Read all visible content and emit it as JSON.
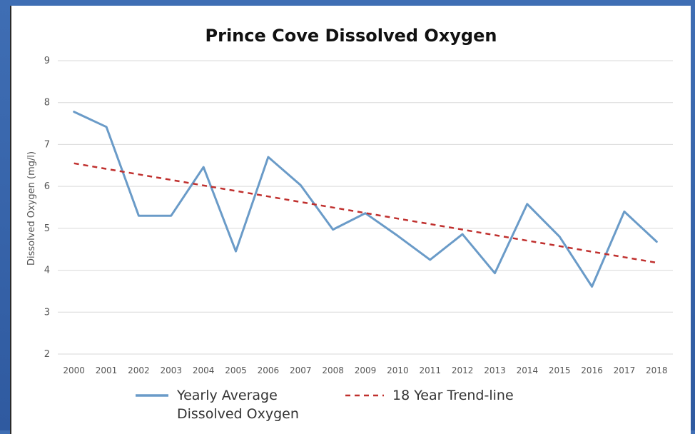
{
  "chart_data": {
    "type": "line",
    "title": "Prince Cove Dissolved Oxygen",
    "xlabel": "",
    "ylabel": "Dissolved Oxygen (mg/l)",
    "ylim": [
      2,
      9
    ],
    "yticks": [
      2,
      3,
      4,
      5,
      6,
      7,
      8,
      9
    ],
    "grid": true,
    "legend": "bottom",
    "x": [
      "2000",
      "2001",
      "2002",
      "2003",
      "2004",
      "2005",
      "2006",
      "2007",
      "2008",
      "2009",
      "2010",
      "2011",
      "2012",
      "2013",
      "2014",
      "2015",
      "2016",
      "2017",
      "2018"
    ],
    "series": [
      {
        "name": "Yearly Average Dissolved Oxygen",
        "style": "solid",
        "color": "#6a9bc8",
        "values": [
          7.78,
          7.42,
          5.3,
          5.3,
          6.46,
          4.45,
          6.7,
          6.03,
          4.97,
          5.36,
          4.82,
          4.25,
          4.86,
          3.93,
          5.58,
          4.8,
          3.61,
          5.4,
          4.68
        ]
      },
      {
        "name": "18 Year Trend-line",
        "style": "dashed",
        "color": "#c0302e",
        "values": [
          6.55,
          6.418,
          6.287,
          6.155,
          6.023,
          5.892,
          5.76,
          5.628,
          5.497,
          5.365,
          5.233,
          5.102,
          4.97,
          4.838,
          4.707,
          4.575,
          4.443,
          4.312,
          4.18
        ]
      }
    ]
  }
}
